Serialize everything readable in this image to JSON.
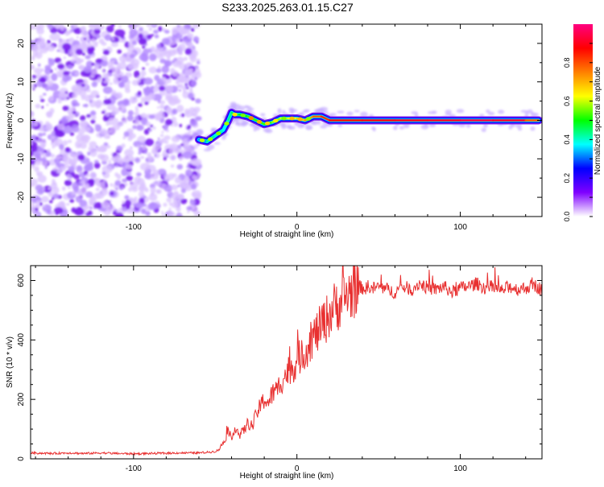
{
  "title": "S233.2025.263.01.15.C27",
  "chart_data": [
    {
      "type": "heatmap",
      "name": "spectrogram",
      "xlabel": "Height of straight line (km)",
      "ylabel": "Frequency (Hz)",
      "xlim": [
        -163,
        150
      ],
      "ylim": [
        -25,
        25
      ],
      "x_ticks": [
        -100,
        0,
        100
      ],
      "y_ticks": [
        -20,
        -10,
        0,
        10,
        20
      ],
      "x_tick_labels": [
        "-100",
        "0",
        "100"
      ],
      "y_tick_labels": [
        "-20",
        "-10",
        "0",
        "10",
        "20"
      ],
      "noise_region_x": [
        -163,
        -60
      ],
      "ridge": {
        "x": [
          -60,
          -55,
          -50,
          -45,
          -42,
          -40,
          -38,
          -35,
          -30,
          -25,
          -20,
          -15,
          -10,
          -5,
          0,
          5,
          10,
          15,
          20,
          40,
          60,
          80,
          100,
          120,
          140,
          148
        ],
        "y": [
          -5,
          -5.5,
          -4,
          -2.5,
          0,
          2,
          1.5,
          1.5,
          1,
          0,
          -1,
          -0.5,
          0.5,
          0.5,
          0.5,
          0,
          1,
          1,
          0,
          0,
          0,
          0,
          0,
          0,
          0,
          0
        ],
        "amplitude": [
          0.25,
          0.4,
          0.45,
          0.35,
          0.4,
          0.45,
          0.45,
          0.5,
          0.5,
          0.55,
          0.5,
          0.55,
          0.6,
          0.6,
          0.65,
          0.7,
          0.75,
          0.8,
          0.85,
          0.88,
          0.9,
          0.9,
          0.92,
          0.95,
          0.88,
          0.7
        ]
      },
      "colorbar": {
        "label": "Normalized spectral amplitude",
        "range": [
          0,
          1
        ],
        "ticks": [
          0.0,
          0.2,
          0.4,
          0.6,
          0.8
        ],
        "tick_labels": [
          "0.0",
          "0.2",
          "0.4",
          "0.6",
          "0.8"
        ],
        "colors": [
          "#ffffff",
          "#7f00ff",
          "#0000ff",
          "#00ffff",
          "#00ff00",
          "#ffff00",
          "#ff8000",
          "#ff0000",
          "#ff0080"
        ]
      }
    },
    {
      "type": "line",
      "name": "snr",
      "xlabel": "Height of straight line (km)",
      "ylabel": "SNR (10 * v/v)",
      "xlim": [
        -163,
        150
      ],
      "ylim": [
        0,
        650
      ],
      "x_ticks": [
        -100,
        0,
        100
      ],
      "y_ticks": [
        0,
        200,
        400,
        600
      ],
      "x_tick_labels": [
        "-100",
        "0",
        "100"
      ],
      "y_tick_labels": [
        "0",
        "200",
        "400",
        "600"
      ],
      "color": "#e83030",
      "series": [
        {
          "name": "SNR",
          "x": [
            -163,
            -150,
            -140,
            -130,
            -120,
            -110,
            -100,
            -90,
            -80,
            -70,
            -60,
            -55,
            -50,
            -48,
            -45,
            -42,
            -40,
            -38,
            -35,
            -32,
            -30,
            -27,
            -25,
            -22,
            -20,
            -17,
            -15,
            -12,
            -10,
            -7,
            -5,
            -2,
            0,
            3,
            5,
            8,
            10,
            13,
            15,
            18,
            20,
            23,
            25,
            28,
            30,
            33,
            35,
            38,
            40,
            45,
            50,
            55,
            60,
            65,
            70,
            75,
            80,
            85,
            90,
            95,
            100,
            105,
            110,
            115,
            120,
            125,
            130,
            135,
            140,
            145,
            150
          ],
          "y": [
            20,
            18,
            20,
            18,
            20,
            18,
            17,
            18,
            19,
            20,
            20,
            22,
            25,
            30,
            55,
            90,
            60,
            110,
            80,
            100,
            120,
            110,
            150,
            180,
            200,
            190,
            220,
            230,
            260,
            280,
            300,
            310,
            330,
            350,
            360,
            390,
            410,
            430,
            450,
            470,
            490,
            510,
            520,
            530,
            550,
            560,
            570,
            580,
            575,
            570,
            580,
            570,
            560,
            580,
            570,
            590,
            575,
            570,
            580,
            560,
            575,
            580,
            590,
            575,
            580,
            565,
            580,
            570,
            575,
            585,
            570
          ]
        }
      ]
    }
  ]
}
